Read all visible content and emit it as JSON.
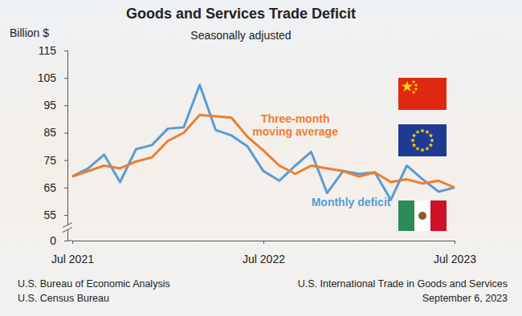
{
  "chart_data": {
    "type": "line",
    "title": "Goods and Services Trade Deficit",
    "subtitle": "Seasonally adjusted",
    "y_label": "Billion $",
    "categories": [
      "Jul 2021",
      null,
      null,
      null,
      null,
      null,
      null,
      null,
      null,
      null,
      null,
      null,
      "Jul 2022",
      null,
      null,
      null,
      null,
      null,
      null,
      null,
      null,
      null,
      null,
      null,
      "Jul 2023"
    ],
    "series": [
      {
        "name": "Monthly deficit",
        "color": "#5b9bd5",
        "values": [
          69,
          72,
          77,
          67,
          79,
          80.5,
          86.5,
          87,
          102.5,
          86,
          84,
          80,
          71,
          67.5,
          73,
          78,
          63,
          71,
          70,
          70.5,
          60.5,
          73,
          68,
          63.5,
          65
        ]
      },
      {
        "name": "Three-month moving average",
        "color": "#ed7d31",
        "values": [
          69,
          71,
          73,
          72,
          74.5,
          76,
          82,
          85,
          91.5,
          91,
          90.5,
          83.5,
          78.5,
          73,
          70,
          73,
          72,
          71,
          69,
          70.5,
          67,
          68,
          66.5,
          67.5,
          65
        ]
      }
    ],
    "ylim": [
      0,
      115
    ],
    "yticks": [
      0,
      55,
      65,
      75,
      85,
      95,
      105,
      115
    ],
    "grid": false,
    "footer_left": [
      "U.S. Bureau of Economic Analysis",
      "U.S. Census Bureau"
    ],
    "footer_right": [
      "U.S. International Trade in Goods and Services",
      "September 6, 2023"
    ]
  }
}
